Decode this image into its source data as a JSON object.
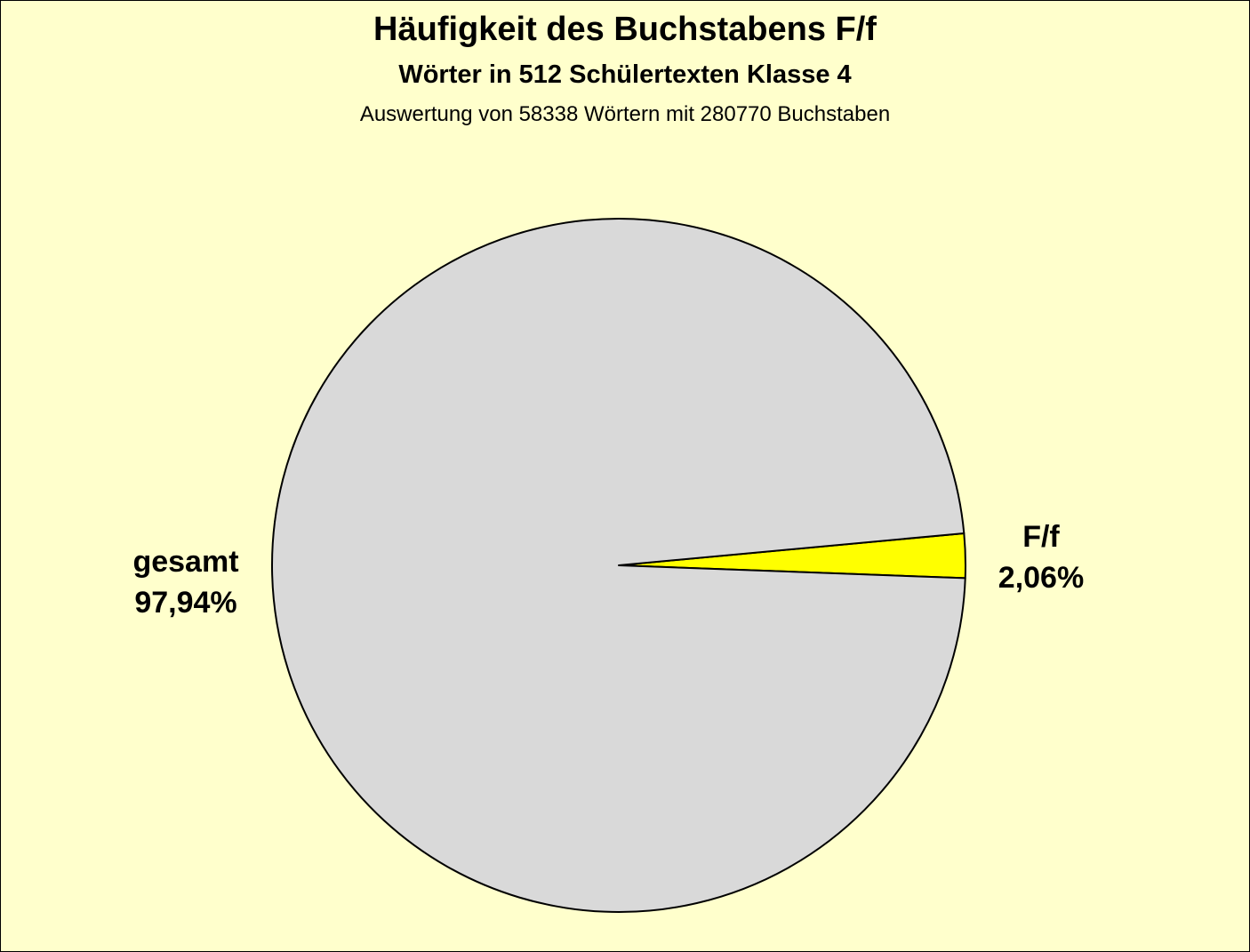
{
  "chart_data": {
    "type": "pie",
    "title": "Häufigkeit des Buchstabens F/f",
    "subtitle": "Wörter in 512 Schülertexten Klasse 4",
    "subtitle2": "Auswertung von 58338 Wörtern mit 280770 Buchstaben",
    "slices": [
      {
        "label": "F/f",
        "value": 2.06,
        "value_label": "2,06%",
        "color": "#ffff00"
      },
      {
        "label": "gesamt",
        "value": 97.94,
        "value_label": "97,94%",
        "color": "#d9d9d9"
      }
    ],
    "background": "#ffffcc",
    "legend": "none"
  }
}
